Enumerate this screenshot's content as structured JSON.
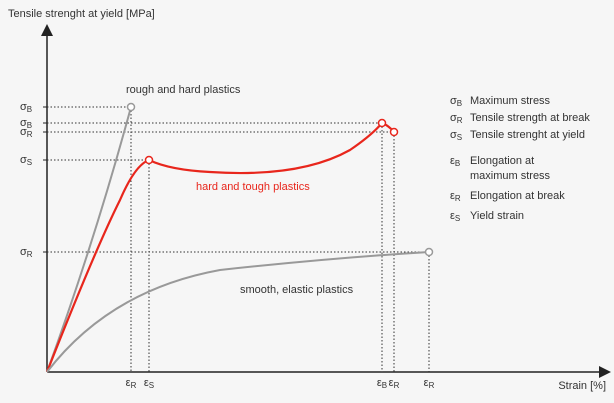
{
  "y_axis_label": "Tensile strenght at yield [MPa]",
  "x_axis_label": "Strain [%]",
  "curves": [
    {
      "label": "rough and hard plastics"
    },
    {
      "label": "hard and tough plastics"
    },
    {
      "label": "smooth, elastic plastics"
    }
  ],
  "y_ticks": [
    {
      "symbol": "σ",
      "sub": "B"
    },
    {
      "symbol": "σ",
      "sub": "B"
    },
    {
      "symbol": "σ",
      "sub": "R"
    },
    {
      "symbol": "σ",
      "sub": "S"
    },
    {
      "symbol": "σ",
      "sub": "R"
    }
  ],
  "x_ticks": [
    {
      "symbol": "ε",
      "sub": "R"
    },
    {
      "symbol": "ε",
      "sub": "S"
    },
    {
      "symbol": "ε",
      "sub": "B"
    },
    {
      "symbol": "ε",
      "sub": "R"
    },
    {
      "symbol": "ε",
      "sub": "R"
    }
  ],
  "legend": [
    {
      "symbol": "σ",
      "sub": "B",
      "lines": [
        "Maximum stress"
      ]
    },
    {
      "symbol": "σ",
      "sub": "R",
      "lines": [
        "Tensile strength at break"
      ]
    },
    {
      "symbol": "σ",
      "sub": "S",
      "lines": [
        "Tensile strenght at yield"
      ]
    },
    {
      "symbol": "ε",
      "sub": "B",
      "lines": [
        "Elongation at",
        "maximum stress"
      ]
    },
    {
      "symbol": "ε",
      "sub": "R",
      "lines": [
        "Elongation at break"
      ]
    },
    {
      "symbol": "ε",
      "sub": "S",
      "lines": [
        "Yield strain"
      ]
    }
  ]
}
